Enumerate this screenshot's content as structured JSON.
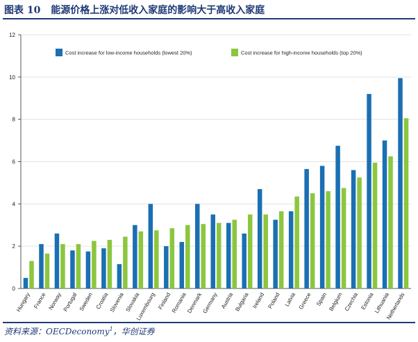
{
  "header": {
    "figure_number": "图表 10",
    "title": "能源价格上涨对低收入家庭的影响大于高收入家庭"
  },
  "source": {
    "prefix": "资料来源：OECDeconomy",
    "footnote_mark": "1",
    "suffix": "，华创证券"
  },
  "colors": {
    "low_income": "#1b6fb3",
    "high_income": "#8cc63f",
    "title": "#1f3a75"
  },
  "chart_data": {
    "type": "bar",
    "title": "",
    "xlabel": "",
    "ylabel": "",
    "ylim": [
      0,
      12
    ],
    "yticks": [
      0,
      2,
      4,
      6,
      8,
      10,
      12
    ],
    "ytick_labels": [
      "0",
      "2",
      "4",
      "6",
      "8",
      "10",
      "12"
    ],
    "legend_position": "top",
    "categories": [
      "Hungary",
      "France",
      "Norway",
      "Portugal",
      "Sweden",
      "Croatia",
      "Slovenia",
      "Slovakia",
      "Luxembourg",
      "Finland",
      "Romania",
      "Denmark",
      "Germany",
      "Austria",
      "Bulgaria",
      "Ireland",
      "Poland",
      "Latvia",
      "Greece",
      "Spain",
      "Belgium",
      "Czechia",
      "Estonia",
      "Lithuania",
      "Netherlands"
    ],
    "series": [
      {
        "name": "Cost increase for low-income households (lowest 20%)",
        "values": [
          0.5,
          2.1,
          2.6,
          1.8,
          1.75,
          1.9,
          1.15,
          3.0,
          4.0,
          2.0,
          2.2,
          4.0,
          3.5,
          3.1,
          2.6,
          4.7,
          3.25,
          3.65,
          5.65,
          5.8,
          6.75,
          5.6,
          9.2,
          7.0,
          9.95
        ]
      },
      {
        "name": "Cost increase for high-income households (top 20%)",
        "values": [
          1.3,
          1.65,
          2.1,
          2.1,
          2.25,
          2.3,
          2.45,
          2.7,
          2.75,
          2.85,
          3.0,
          3.05,
          3.1,
          3.25,
          3.5,
          3.5,
          3.65,
          4.35,
          4.5,
          4.6,
          4.75,
          5.25,
          5.95,
          6.25,
          8.05
        ]
      }
    ]
  }
}
